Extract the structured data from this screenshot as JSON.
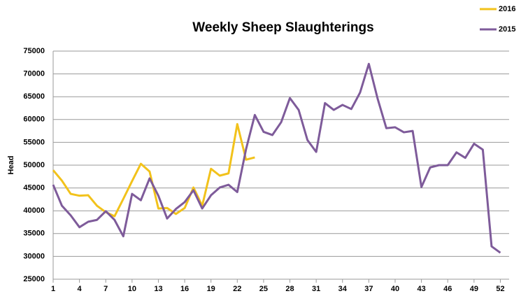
{
  "chart_data": {
    "type": "line",
    "title": "Weekly Sheep Slaughterings",
    "y_label": "Head",
    "x": [
      1,
      2,
      3,
      4,
      5,
      6,
      7,
      8,
      9,
      10,
      11,
      12,
      13,
      14,
      15,
      16,
      17,
      18,
      19,
      20,
      21,
      22,
      23,
      24,
      25,
      26,
      27,
      28,
      29,
      30,
      31,
      32,
      33,
      34,
      35,
      36,
      37,
      38,
      39,
      40,
      41,
      42,
      43,
      44,
      45,
      46,
      47,
      48,
      49,
      50,
      51,
      52
    ],
    "xlim": [
      1,
      53
    ],
    "xticks": [
      1,
      4,
      7,
      10,
      13,
      16,
      19,
      22,
      25,
      28,
      31,
      34,
      37,
      40,
      43,
      46,
      49,
      52
    ],
    "ylim": [
      25000,
      75000
    ],
    "yticks": [
      25000,
      30000,
      35000,
      40000,
      45000,
      50000,
      55000,
      60000,
      65000,
      70000,
      75000
    ],
    "grid": true,
    "legend": "top-right",
    "series": [
      {
        "name": "2016",
        "color": "#f2c21b",
        "values": [
          48900,
          46600,
          43700,
          43300,
          43400,
          41100,
          39700,
          38800,
          42600,
          46500,
          50300,
          48600,
          40500,
          40600,
          39300,
          40600,
          45100,
          41100,
          49200,
          47700,
          48200,
          59000,
          51200,
          51700,
          null,
          null,
          null,
          null,
          null,
          null,
          null,
          null,
          null,
          null,
          null,
          null,
          null,
          null,
          null,
          null,
          null,
          null,
          null,
          null,
          null,
          null,
          null,
          null,
          null,
          null,
          null,
          null
        ]
      },
      {
        "name": "2015",
        "color": "#7e5b9a",
        "values": [
          45700,
          41100,
          39000,
          36400,
          37600,
          38000,
          39900,
          38000,
          34400,
          43700,
          42300,
          47100,
          43300,
          38300,
          40400,
          41900,
          44500,
          40500,
          43400,
          45100,
          45700,
          44100,
          53500,
          61000,
          57300,
          56600,
          59400,
          64700,
          62100,
          55500,
          52900,
          63600,
          62100,
          63200,
          62300,
          65900,
          72200,
          64600,
          58100,
          58300,
          57200,
          57500,
          45200,
          49500,
          50000,
          50000,
          52800,
          51600,
          54700,
          53400,
          32200,
          30800
        ]
      }
    ]
  }
}
